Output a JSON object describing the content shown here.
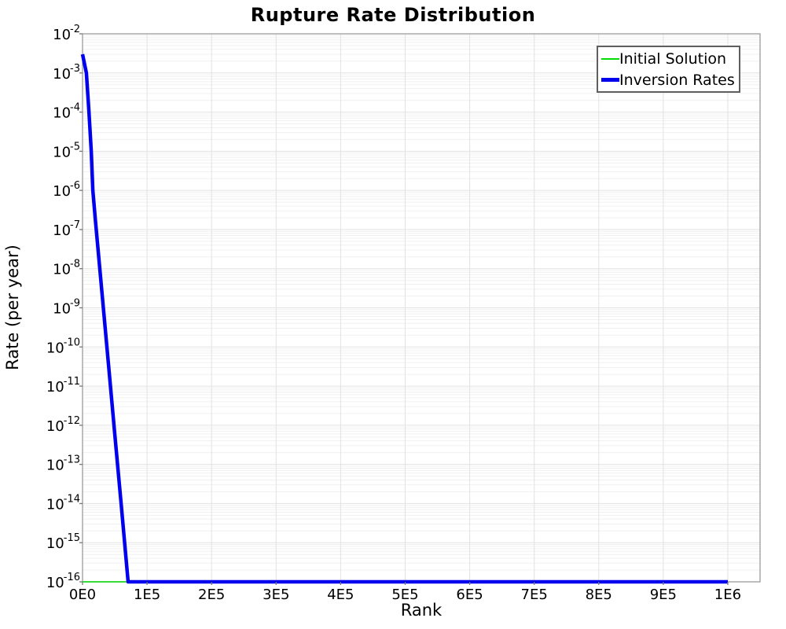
{
  "chart_data": {
    "type": "line",
    "title": "Rupture Rate Distribution",
    "xlabel": "Rank",
    "ylabel": "Rate (per year)",
    "grid": true,
    "legend_position": "top-right",
    "x_axis": {
      "min": 0,
      "max": 1000000,
      "axis_max": 1050000,
      "tick_values": [
        0,
        100000,
        200000,
        300000,
        400000,
        500000,
        600000,
        700000,
        800000,
        900000,
        1000000
      ],
      "tick_labels": [
        "0E0",
        "1E5",
        "2E5",
        "3E5",
        "4E5",
        "5E5",
        "6E5",
        "7E5",
        "8E5",
        "9E5",
        "1E6"
      ]
    },
    "y_axis": {
      "scale": "log",
      "min": 1e-16,
      "max": 0.01,
      "min_exponent": -16,
      "max_exponent": -2,
      "tick_exponents": [
        -2,
        -3,
        -4,
        -5,
        -6,
        -7,
        -8,
        -9,
        -10,
        -11,
        -12,
        -13,
        -14,
        -15,
        -16
      ]
    },
    "series": [
      {
        "name": "Initial Solution",
        "color": "#00dd00",
        "width": 1.5,
        "legend_swatch_height": 2,
        "x": [
          0,
          1000000
        ],
        "y": [
          1e-16,
          1e-16
        ]
      },
      {
        "name": "Inversion Rates",
        "color": "#0000ee",
        "width": 4.5,
        "legend_swatch_height": 5,
        "x": [
          0,
          6000,
          10000,
          13500,
          16000,
          20000,
          30000,
          40000,
          50000,
          60000,
          70600,
          1000000
        ],
        "y": [
          0.003,
          0.001,
          0.0001,
          1e-05,
          1e-06,
          1.7e-07,
          2.6e-09,
          4e-11,
          6e-13,
          9e-15,
          1e-16,
          1e-16
        ]
      }
    ],
    "grid_colors": {
      "major": "#e2e2e2",
      "minor": "#f0f0f0"
    },
    "border_color": "#9b9b9b",
    "tick_color": "#777777"
  }
}
